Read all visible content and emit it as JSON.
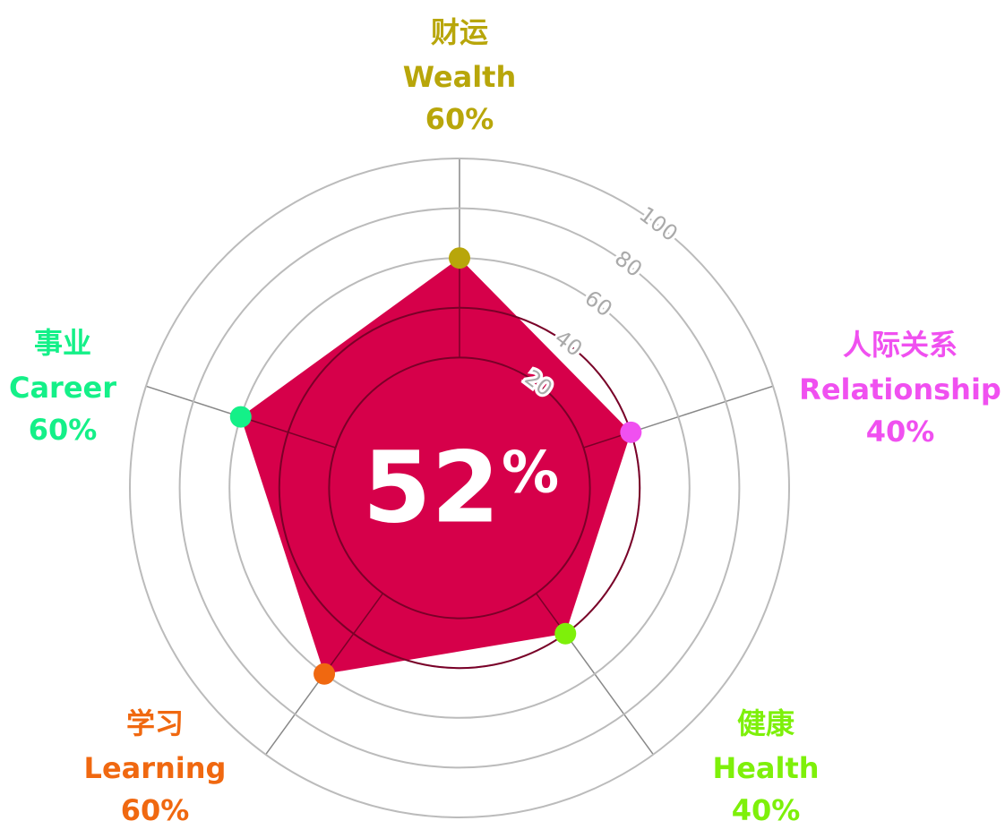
{
  "chart_data": {
    "type": "radar",
    "center_value": "52",
    "center_unit": "%",
    "categories": [
      "Wealth",
      "Relationship",
      "Health",
      "Learning",
      "Career"
    ],
    "categories_zh": [
      "财运",
      "人际关系",
      "健康",
      "学习",
      "事业"
    ],
    "category_colors": [
      "#b8a60a",
      "#f050f0",
      "#7ef00a",
      "#f06810",
      "#14f088"
    ],
    "series": [
      {
        "color": "#d6004a",
        "values": [
          60,
          40,
          40,
          60,
          60
        ],
        "value_labels": [
          "60%",
          "40%",
          "40%",
          "60%",
          "60%"
        ]
      }
    ],
    "ylim": [
      0,
      100
    ],
    "yticks": [
      20,
      40,
      60,
      80,
      100
    ],
    "grid": true
  }
}
